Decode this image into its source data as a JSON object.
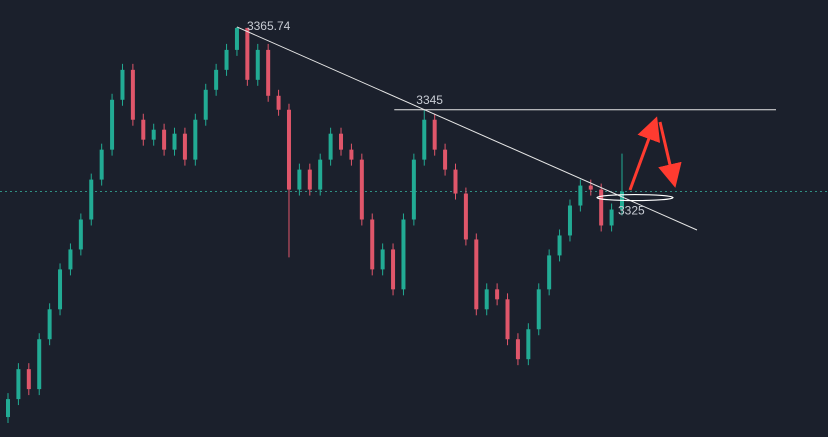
{
  "chart_data": {
    "type": "candlestick",
    "up_color": "#22ab94",
    "down_color": "#e0566a",
    "ylim": [
      3263,
      3372.5
    ],
    "open": [
      3268,
      3272.5,
      3280,
      3275,
      3287.5,
      3295,
      3305,
      3310,
      3317.5,
      3327.5,
      3335,
      3347.5,
      3355,
      3342.5,
      3337.5,
      3340,
      3335,
      3339,
      3332.5,
      3342.5,
      3350,
      3355,
      3360,
      3365.5,
      3352.5,
      3360,
      3348.5,
      3345,
      3325,
      3330,
      3325,
      3332.5,
      3339,
      3335,
      3332.5,
      3317.5,
      3305,
      3310,
      3300,
      3317.5,
      3332.5,
      3342.5,
      3335,
      3330,
      3324,
      3312.5,
      3295,
      3300,
      3297.5,
      3287.5,
      3282.5,
      3290,
      3300,
      3308.5,
      3313.5,
      3321,
      3326,
      3325,
      3316,
      3320
    ],
    "high": [
      3274,
      3281.5,
      3281.5,
      3289,
      3296.5,
      3306.5,
      3311.5,
      3319,
      3329,
      3336.5,
      3349,
      3356.5,
      3356.5,
      3344,
      3341.5,
      3341.5,
      3340.5,
      3340.5,
      3344,
      3351.5,
      3356.5,
      3361.5,
      3365.74,
      3365,
      3361.5,
      3361.5,
      3350,
      3346.5,
      3331.5,
      3331.5,
      3334,
      3340.5,
      3340.5,
      3336.5,
      3334,
      3319,
      3311.5,
      3311.5,
      3319,
      3334,
      3345,
      3344,
      3336.5,
      3331.5,
      3325.5,
      3314,
      3301.5,
      3301.5,
      3299,
      3289,
      3291.5,
      3301.5,
      3310,
      3315,
      3322.5,
      3327.5,
      3327.5,
      3326.5,
      3321.5,
      3334
    ],
    "low": [
      3266.5,
      3271,
      3273.5,
      3273.5,
      3286,
      3293.5,
      3303.5,
      3308.5,
      3316,
      3326,
      3333.5,
      3346,
      3341,
      3336,
      3336,
      3333.5,
      3333.5,
      3331,
      3331,
      3341,
      3348.5,
      3353.5,
      3358.5,
      3351,
      3351,
      3347,
      3343.5,
      3308,
      3323.5,
      3323.5,
      3323.5,
      3331,
      3333.5,
      3331,
      3316,
      3303.5,
      3303.5,
      3298.5,
      3298.5,
      3316,
      3331,
      3333.5,
      3328.5,
      3322.5,
      3311,
      3293.5,
      3293.5,
      3296,
      3286,
      3281,
      3281,
      3288.5,
      3298.5,
      3307,
      3312,
      3319.5,
      3323.5,
      3314.5,
      3314.5,
      3318.5
    ],
    "close": [
      3272.5,
      3280,
      3275,
      3287.5,
      3295,
      3305,
      3310,
      3317.5,
      3327.5,
      3335,
      3347.5,
      3355,
      3342.5,
      3337.5,
      3340,
      3335,
      3339,
      3332.5,
      3342.5,
      3350,
      3355,
      3360,
      3365.5,
      3352.5,
      3360,
      3348.5,
      3345,
      3325,
      3330,
      3325,
      3332.5,
      3339,
      3335,
      3332.5,
      3317.5,
      3305,
      3310,
      3300,
      3317.5,
      3332.5,
      3342.5,
      3335,
      3330,
      3324,
      3312.5,
      3295,
      3300,
      3297.5,
      3287.5,
      3282.5,
      3290,
      3300,
      3308.5,
      3313.5,
      3321,
      3326,
      3325,
      3316,
      3320,
      3324.5
    ],
    "levels": [
      3365.74,
      3345,
      3325
    ]
  }
}
